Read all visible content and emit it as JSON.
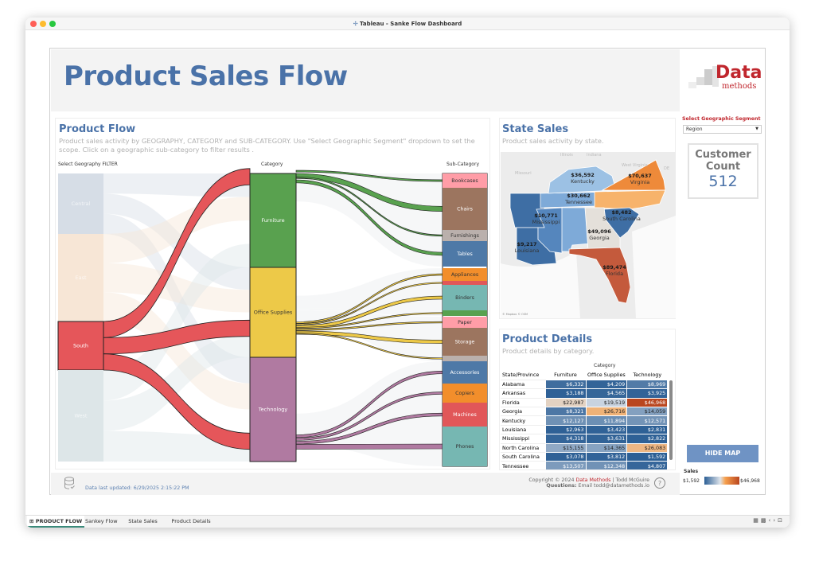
{
  "window": {
    "title": "Tableau - Sanke Flow Dashboard"
  },
  "header": {
    "title": "Product Sales Flow",
    "logo": {
      "big": "Data",
      "small": "methods"
    }
  },
  "filter": {
    "label": "Select Geographic Segment",
    "value": "Region"
  },
  "customer": {
    "label1": "Customer",
    "label2": "Count",
    "value": "512"
  },
  "flow": {
    "title": "Product Flow",
    "subtitle": "Product sales activity by GEOGRAPHY, CATEGORY and SUB-CATEGORY.  Use \"Select Geographic Segment\" dropdown to set the scope.  Click on a geographic sub-category to filter results  .",
    "col_geo": "Select Geography FILTER",
    "col_cat": "Category",
    "col_sub": "Sub-Category",
    "geo": [
      {
        "label": "Central",
        "color": "#d6dde6",
        "selected": false
      },
      {
        "label": "East",
        "color": "#f7e6d6",
        "selected": false
      },
      {
        "label": "South",
        "color": "#e5565a",
        "selected": true
      },
      {
        "label": "West",
        "color": "#dde6e8",
        "selected": false
      }
    ],
    "categories": [
      {
        "label": "Furniture",
        "color": "#59a14f"
      },
      {
        "label": "Office Supplies",
        "color": "#edc948"
      },
      {
        "label": "Technology",
        "color": "#b07aa1"
      }
    ],
    "subcategories": [
      {
        "label": "Bookcases",
        "color": "#ff9da7",
        "text": "#333"
      },
      {
        "label": "Chairs",
        "color": "#9c755f",
        "text": "#fff"
      },
      {
        "label": "Furnishings",
        "color": "#bab0ac",
        "text": "#333"
      },
      {
        "label": "Tables",
        "color": "#4e79a7",
        "text": "#fff"
      },
      {
        "label": "Appliances",
        "color": "#f28e2b",
        "text": "#333"
      },
      {
        "label": "",
        "color": "#e15759",
        "text": "#fff"
      },
      {
        "label": "Binders",
        "color": "#76b7b2",
        "text": "#333"
      },
      {
        "label": "",
        "color": "#59a14f",
        "text": "#fff"
      },
      {
        "label": "Paper",
        "color": "#ff9da7",
        "text": "#333"
      },
      {
        "label": "Storage",
        "color": "#9c755f",
        "text": "#fff"
      },
      {
        "label": "",
        "color": "#bab0ac",
        "text": "#fff"
      },
      {
        "label": "Accessories",
        "color": "#4e79a7",
        "text": "#fff"
      },
      {
        "label": "Copiers",
        "color": "#f28e2b",
        "text": "#333"
      },
      {
        "label": "Machines",
        "color": "#e15759",
        "text": "#fff"
      },
      {
        "label": "Phones",
        "color": "#76b7b2",
        "text": "#333"
      }
    ]
  },
  "state_sales": {
    "title": "State Sales",
    "subtitle": "Product sales activity by state.",
    "attribution": "© Mapbox © OSM",
    "bg_labels": [
      "Missouri",
      "Illinois",
      "Indiana",
      "Ohio",
      "West Virginia",
      "DE"
    ],
    "states": [
      {
        "name": "Kentucky",
        "value": "$36,592",
        "labeled": true
      },
      {
        "name": "Virginia",
        "value": "$70,637",
        "labeled": true
      },
      {
        "name": "Tennessee",
        "value": "$30,662",
        "labeled": true
      },
      {
        "name": "Mississippi",
        "value": "$10,771",
        "labeled": true
      },
      {
        "name": "South Carolina",
        "value": "$8,482",
        "labeled": true
      },
      {
        "name": "Georgia",
        "value": "$49,096",
        "labeled": true
      },
      {
        "name": "Louisiana",
        "value": "$9,217",
        "labeled": true
      },
      {
        "name": "Florida",
        "value": "$89,474",
        "labeled": true
      },
      {
        "name": "Arkansas",
        "value": "",
        "labeled": false
      },
      {
        "name": "Alabama",
        "value": "",
        "labeled": false
      },
      {
        "name": "North Carolina",
        "value": "",
        "labeled": false
      }
    ]
  },
  "details": {
    "title": "Product Details",
    "subtitle": "Product details by category.",
    "group_header": "Category",
    "row_header": "State/Province",
    "columns": [
      "Furniture",
      "Office Supplies",
      "Technology"
    ],
    "rows": [
      {
        "state": "Alabama",
        "values": [
          "$6,332",
          "$4,209",
          "$8,969"
        ]
      },
      {
        "state": "Arkansas",
        "values": [
          "$3,188",
          "$4,565",
          "$3,925"
        ]
      },
      {
        "state": "Florida",
        "values": [
          "$22,987",
          "$19,519",
          "$46,968"
        ]
      },
      {
        "state": "Georgia",
        "values": [
          "$8,321",
          "$26,716",
          "$14,059"
        ]
      },
      {
        "state": "Kentucky",
        "values": [
          "$12,127",
          "$11,894",
          "$12,571"
        ]
      },
      {
        "state": "Louisiana",
        "values": [
          "$2,963",
          "$3,423",
          "$2,831"
        ]
      },
      {
        "state": "Mississippi",
        "values": [
          "$4,318",
          "$3,631",
          "$2,822"
        ]
      },
      {
        "state": "North Carolina",
        "values": [
          "$15,155",
          "$14,365",
          "$26,083"
        ]
      },
      {
        "state": "South Carolina",
        "values": [
          "$3,078",
          "$3,812",
          "$1,592"
        ]
      },
      {
        "state": "Tennessee",
        "values": [
          "$13,507",
          "$12,348",
          "$4,807"
        ]
      }
    ]
  },
  "hide_map": "HIDE MAP",
  "legend": {
    "title": "Sales",
    "min": "$1,592",
    "max": "$46,968",
    "colors": [
      "#2c5f95",
      "#dde3ea",
      "#f6a04d",
      "#b9461f"
    ]
  },
  "footer": {
    "updated": "Data last updated: 6/29/2025 2:15:22 PM",
    "copyright_pre": "Copyright © 2024 ",
    "copyright_brand": "Data Methods",
    "copyright_post": " | Todd McGuire",
    "questions_label": "Questions:",
    "questions_text": " Email todd@datamethods.io"
  },
  "tabs": [
    {
      "label": "PRODUCT FLOW",
      "active": true
    },
    {
      "label": "Sankey Flow",
      "active": false
    },
    {
      "label": "State Sales",
      "active": false
    },
    {
      "label": "Product Details",
      "active": false
    }
  ],
  "colors": {
    "accent": "#4a72a8",
    "brand_red": "#c0262d",
    "button": "#6f93c4"
  }
}
